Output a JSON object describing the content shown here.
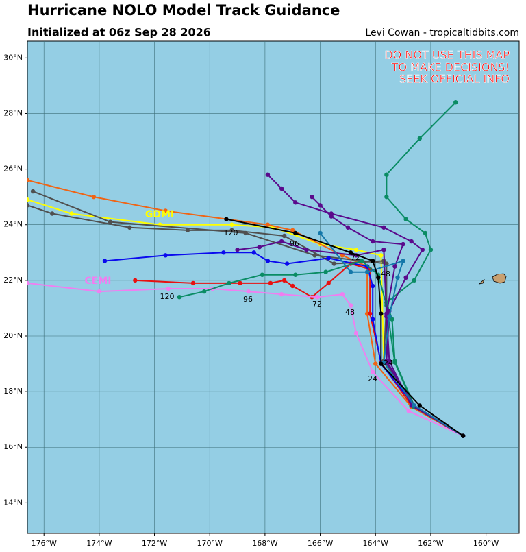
{
  "chart_data": {
    "type": "line",
    "title": "Hurricane NOLO Model Track Guidance",
    "subtitle": "Initialized at 06z Sep 28 2026",
    "credit": "Levi Cowan - tropicaltidbits.com",
    "warning": [
      "DO NOT USE THIS MAP",
      "TO MAKE DECISIONS!",
      "SEEK OFFICIAL INFO"
    ],
    "xlim": [
      -176.6,
      -158.8
    ],
    "ylim": [
      12.9,
      30.6
    ],
    "xticks": [
      {
        "value": -176,
        "label": "176°W"
      },
      {
        "value": -174,
        "label": "174°W"
      },
      {
        "value": -172,
        "label": "172°W"
      },
      {
        "value": -170,
        "label": "170°W"
      },
      {
        "value": -168,
        "label": "168°W"
      },
      {
        "value": -166,
        "label": "166°W"
      },
      {
        "value": -164,
        "label": "164°W"
      },
      {
        "value": -162,
        "label": "162°W"
      },
      {
        "value": -160,
        "label": "160°W"
      }
    ],
    "yticks": [
      {
        "value": 14,
        "label": "14°N"
      },
      {
        "value": 16,
        "label": "16°N"
      },
      {
        "value": 18,
        "label": "18°N"
      },
      {
        "value": 20,
        "label": "20°N"
      },
      {
        "value": 22,
        "label": "22°N"
      },
      {
        "value": 24,
        "label": "24°N"
      },
      {
        "value": 26,
        "label": "26°N"
      },
      {
        "value": 28,
        "label": "28°N"
      },
      {
        "value": 30,
        "label": "30°N"
      }
    ],
    "grid": true,
    "series": [
      {
        "color": "#ffff00",
        "x": [
          -160.83,
          -162.7,
          -163.7,
          -163.8,
          -164.7,
          -166.0,
          -167.7,
          -169.2,
          -171.8,
          -175.0,
          -176.6
        ],
        "values": [
          16.41,
          17.5,
          19.1,
          22.9,
          23.1,
          23.3,
          23.9,
          24.0,
          24.0,
          24.4,
          24.9
        ]
      },
      {
        "color": "#f06414",
        "x": [
          -160.83,
          -162.7,
          -164.0,
          -164.3,
          -164.3,
          -165.2,
          -167.0,
          -167.9,
          -171.6,
          -174.2,
          -176.6
        ],
        "values": [
          16.41,
          17.45,
          19.0,
          20.8,
          22.5,
          22.9,
          23.8,
          24.0,
          24.5,
          25.0,
          25.6
        ]
      },
      {
        "color": "#505050",
        "x": [
          -160.83,
          -162.6,
          -163.7,
          -163.6,
          -163.7,
          -165.5,
          -167.3,
          -169.2,
          -170.8,
          -172.9,
          -175.7,
          -176.6
        ],
        "values": [
          16.41,
          17.45,
          19.1,
          21.2,
          22.7,
          22.6,
          23.6,
          23.8,
          23.8,
          23.9,
          24.4,
          24.7
        ]
      },
      {
        "color": "#505050",
        "x": [
          -160.83,
          -162.6,
          -163.6,
          -163.6,
          -166.2,
          -168.7,
          -173.6,
          -176.4
        ],
        "values": [
          16.41,
          17.45,
          19.0,
          22.6,
          22.9,
          23.7,
          24.1,
          25.2
        ]
      },
      {
        "color": "#e81010",
        "x": [
          -160.83,
          -162.7,
          -163.8,
          -164.2,
          -164.2,
          -164.9,
          -165.7,
          -166.3,
          -167.0,
          -167.3,
          -167.8,
          -168.9,
          -170.6,
          -172.7
        ],
        "values": [
          16.41,
          17.5,
          19.05,
          20.8,
          22.4,
          22.6,
          21.9,
          21.4,
          21.8,
          22.0,
          21.9,
          21.9,
          21.9,
          22.0
        ]
      },
      {
        "color": "#0a0aee",
        "x": [
          -160.83,
          -162.6,
          -163.8,
          -164.1,
          -164.1,
          -164.3,
          -165.7,
          -167.2,
          -167.9,
          -168.4,
          -169.5,
          -171.6,
          -173.8
        ],
        "values": [
          16.41,
          17.5,
          19.0,
          20.6,
          21.8,
          22.5,
          22.8,
          22.6,
          22.7,
          23.0,
          23.0,
          22.9,
          22.7
        ]
      },
      {
        "color": "#f07ef0",
        "x": [
          -160.83,
          -162.8,
          -164.1,
          -164.7,
          -164.9,
          -165.2,
          -166.1,
          -167.4,
          -168.6,
          -169.9,
          -171.5,
          -174.0,
          -176.6
        ],
        "values": [
          16.41,
          17.3,
          18.7,
          20.1,
          21.1,
          21.5,
          21.4,
          21.5,
          21.6,
          21.7,
          21.7,
          21.6,
          21.9
        ]
      },
      {
        "color": "#0a8c64",
        "x": [
          -160.83,
          -162.6,
          -163.3,
          -163.4,
          -163.6,
          -162.6,
          -162.0,
          -162.2,
          -162.9,
          -163.6,
          -163.6,
          -162.4,
          -161.1
        ],
        "values": [
          16.41,
          17.5,
          19.1,
          20.6,
          21.2,
          22.0,
          23.1,
          23.7,
          24.2,
          25.0,
          25.8,
          27.1,
          28.4
        ]
      },
      {
        "color": "#0a8c64",
        "x": [
          -160.83,
          -162.6,
          -163.3,
          -163.6,
          -163.9,
          -164.5,
          -165.8,
          -166.9,
          -168.1,
          -169.3,
          -170.2,
          -171.1
        ],
        "values": [
          16.41,
          17.45,
          19.05,
          21.1,
          22.2,
          22.7,
          22.3,
          22.2,
          22.2,
          21.9,
          21.6,
          21.4
        ]
      },
      {
        "color": "#5a0a8c",
        "x": [
          -160.83,
          -162.7,
          -163.5,
          -163.6,
          -163.3,
          -163.0,
          -164.1,
          -165.0,
          -165.6,
          -166.0,
          -166.3
        ],
        "values": [
          16.41,
          17.5,
          19.1,
          20.8,
          22.5,
          23.3,
          23.4,
          23.9,
          24.3,
          24.7,
          25.0
        ]
      },
      {
        "color": "#5a0a8c",
        "x": [
          -160.83,
          -162.6,
          -163.6,
          -163.5,
          -162.9,
          -162.3,
          -162.7,
          -163.7,
          -165.6,
          -166.9,
          -167.4,
          -167.9
        ],
        "values": [
          16.41,
          17.5,
          19.1,
          20.9,
          22.1,
          23.1,
          23.4,
          23.9,
          24.4,
          24.8,
          25.3,
          25.8
        ]
      },
      {
        "color": "#5a0a8c",
        "x": [
          -160.83,
          -162.6,
          -163.6,
          -163.6,
          -163.7,
          -164.7,
          -166.5,
          -167.4,
          -168.2,
          -169.0
        ],
        "values": [
          16.41,
          17.5,
          19.05,
          20.7,
          23.1,
          22.9,
          23.1,
          23.4,
          23.2,
          23.1
        ]
      },
      {
        "color": "#1478aa",
        "x": [
          -160.83,
          -162.6,
          -163.7,
          -163.5,
          -163.2,
          -163.0,
          -164.3,
          -164.9,
          -166.0
        ],
        "values": [
          16.41,
          17.5,
          19.05,
          20.7,
          22.1,
          22.7,
          22.3,
          22.3,
          23.7
        ]
      },
      {
        "color": "#000000",
        "x": [
          -160.83,
          -162.4,
          -163.8,
          -163.8,
          -163.9,
          -164.1,
          -164.9,
          -166.9,
          -169.4
        ],
        "values": [
          16.41,
          17.5,
          19.0,
          20.8,
          22.1,
          22.7,
          23.0,
          23.7,
          24.2
        ]
      }
    ],
    "annotations": [
      "GDMI",
      "CEMI",
      "120",
      "96",
      "72",
      "48",
      "24",
      "120",
      "96",
      "72",
      "48",
      "24"
    ]
  }
}
